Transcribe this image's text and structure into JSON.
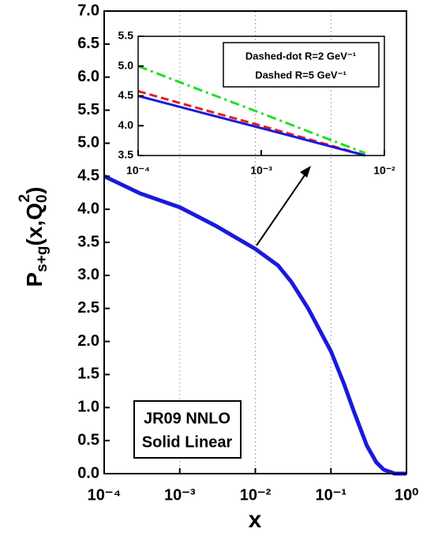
{
  "chart_data": [
    {
      "type": "line",
      "xlabel": "x",
      "ylabel": {
        "main": "P",
        "sub": "s+g",
        "args": "(x,Q",
        "sub2": "0",
        "sup": "2",
        "close": ")"
      },
      "xscale": "log",
      "xlim": [
        0.0001,
        1
      ],
      "xticks": [
        {
          "value": 0.0001,
          "label": "10⁻⁴"
        },
        {
          "value": 0.001,
          "label": "10⁻³"
        },
        {
          "value": 0.01,
          "label": "10⁻²"
        },
        {
          "value": 0.1,
          "label": "10⁻¹"
        },
        {
          "value": 1,
          "label": "10⁰"
        }
      ],
      "ylim": [
        0,
        7
      ],
      "yticks": [
        {
          "value": 0,
          "label": "0.0"
        },
        0.5,
        {
          "value": 1,
          "label": "1.0"
        },
        1.5,
        {
          "value": 2,
          "label": "2.0"
        },
        2.5,
        {
          "value": 3,
          "label": "3.0"
        },
        3.5,
        {
          "value": 4,
          "label": "4.0"
        },
        4.5,
        {
          "value": 5,
          "label": "5.0"
        },
        5.5,
        {
          "value": 6,
          "label": "6.0"
        },
        6.5,
        {
          "value": 7,
          "label": "7.0"
        }
      ],
      "xgrid": true,
      "annotations": [
        "JR09 NNLO",
        "Solid Linear"
      ],
      "x": [
        0.0001,
        0.0003,
        0.001,
        0.003,
        0.01,
        0.02,
        0.03,
        0.05,
        0.1,
        0.15,
        0.2,
        0.3,
        0.4,
        0.5,
        0.7,
        1
      ],
      "series": [
        {
          "color": "#1a1adb",
          "style": "solid",
          "values": [
            4.5,
            4.24,
            4.03,
            3.75,
            3.4,
            3.15,
            2.9,
            2.5,
            1.85,
            1.35,
            0.95,
            0.42,
            0.17,
            0.06,
            0.0,
            0.0
          ]
        }
      ]
    },
    {
      "type": "line",
      "xscale": "log",
      "xlim": [
        0.0001,
        0.01
      ],
      "xticks": [
        {
          "value": 0.0001,
          "label": "10⁻⁴"
        },
        {
          "value": 0.001,
          "label": "10⁻³"
        },
        {
          "value": 0.01,
          "label": "10⁻²"
        }
      ],
      "ylim": [
        3.5,
        5.5
      ],
      "yticks": [
        3.5,
        {
          "value": 4,
          "label": "4.0"
        },
        4.5,
        {
          "value": 5,
          "label": "5.0"
        },
        5.5
      ],
      "xgrid": false,
      "x": [
        0.0001,
        0.0003,
        0.001,
        0.003,
        0.007
      ],
      "series": [
        {
          "name": "Dashed-dot R=2 GeV⁻¹",
          "color": "#22dd22",
          "style": "dash-dot",
          "values": [
            5.0,
            4.62,
            4.21,
            3.83,
            3.54
          ]
        },
        {
          "name": "Dashed R=5 GeV⁻¹",
          "color": "#e02020",
          "style": "dashed",
          "values": [
            4.58,
            4.3,
            4.0,
            3.72,
            3.5
          ]
        },
        {
          "color": "#1a1adb",
          "style": "solid",
          "values": [
            4.5,
            4.24,
            3.96,
            3.7,
            3.5
          ]
        }
      ]
    }
  ]
}
